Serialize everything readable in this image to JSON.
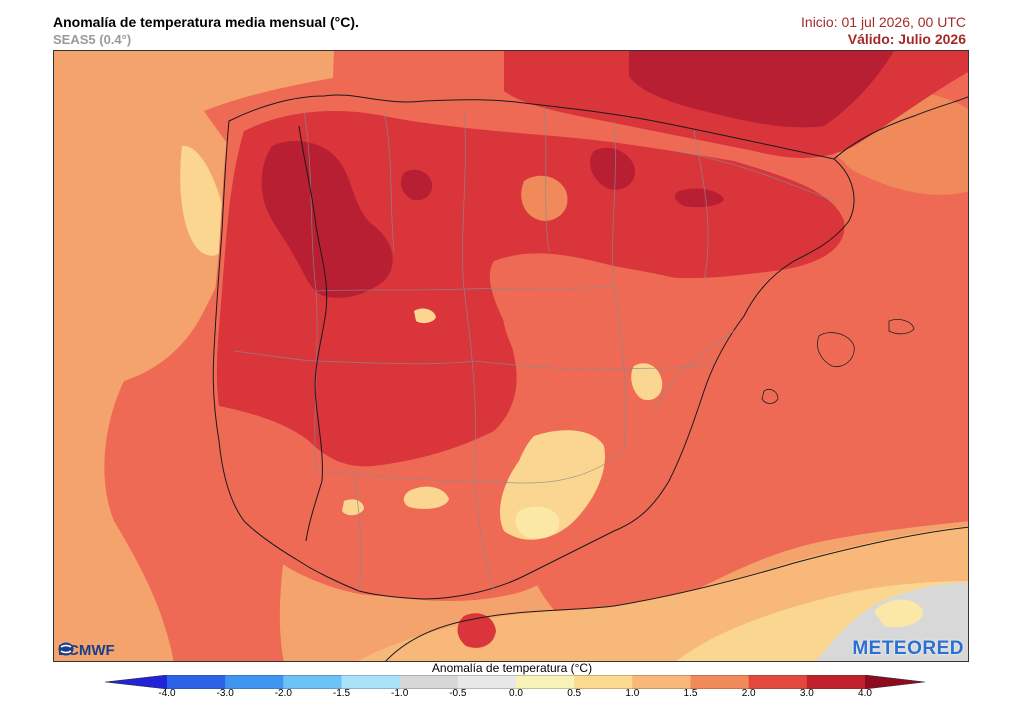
{
  "header": {
    "title": "Anomalía de temperatura media mensual (°C).",
    "model": "SEAS5 (0.4°)",
    "init": "Inicio: 01 jul 2026, 00 UTC",
    "valid": "Válido: Julio 2026"
  },
  "logos": {
    "left": "ECMWF",
    "right": "METEORED"
  },
  "colorbar": {
    "label": "Anomalía de temperatura (°C)",
    "ticks": [
      "-4.0",
      "-3.0",
      "-2.0",
      "-1.5",
      "-1.0",
      "-0.5",
      "0.0",
      "0.5",
      "1.0",
      "1.5",
      "2.0",
      "3.0",
      "4.0"
    ],
    "colors": [
      "#2222d8",
      "#2b62e8",
      "#3f95ef",
      "#6cc2f5",
      "#a9e3f9",
      "#d7d7d7",
      "#e8e8e8",
      "#f7f2b8",
      "#fbd98f",
      "#f7b87a",
      "#f18a5a",
      "#e2483c",
      "#c21f2c",
      "#8e0a1f"
    ]
  },
  "map_colors": {
    "sea_base": "#f5a36c",
    "anom_2_3": "#ee6a55",
    "anom_3_4": "#d9353b",
    "anom_4": "#b81f32",
    "anom_1_1_5": "#fbd690",
    "anom_0_5_1": "#fbe7a6",
    "neutral": "#d8d8d8"
  }
}
